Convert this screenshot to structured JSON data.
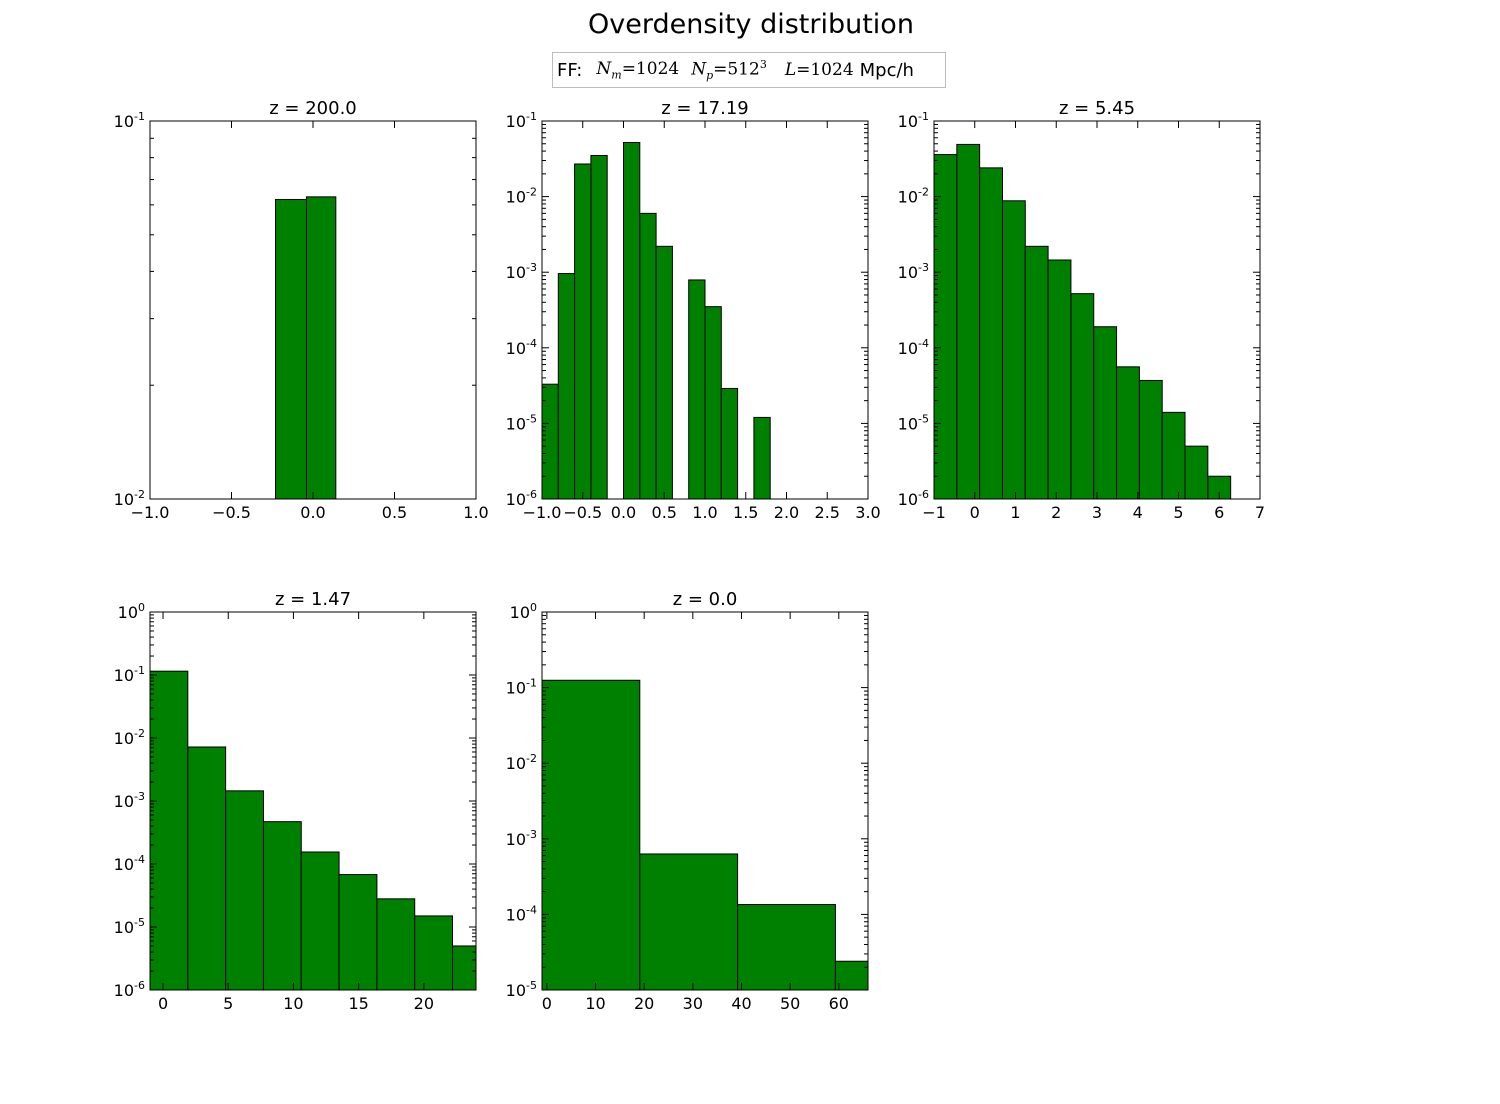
{
  "figure": {
    "title": "Overdensity distribution",
    "legend": {
      "prefix": "FF:",
      "nm_label": "N",
      "nm_sub": "m",
      "nm_value": "=1024",
      "np_label": "N",
      "np_sub": "p",
      "np_value": "=512",
      "np_sup": "3",
      "l_label": "L",
      "l_value": "=1024",
      "l_unit": "Mpc/h"
    },
    "bar_color": "#008000"
  },
  "chart_data": [
    {
      "type": "bar",
      "title": "z = 200.0",
      "yscale": "log",
      "xlim": [
        -1.0,
        1.0
      ],
      "ylim": [
        0.01,
        0.1
      ],
      "xticks": [
        -1.0,
        -0.5,
        0.0,
        0.5,
        1.0
      ],
      "xtick_labels": [
        "−1.0",
        "−0.5",
        "0.0",
        "0.5",
        "1.0"
      ],
      "ytick_exps": [
        -2,
        -1
      ],
      "bin_edges": [
        -0.23,
        -0.04,
        0.14
      ],
      "values": [
        0.062,
        0.063
      ]
    },
    {
      "type": "bar",
      "title": "z = 17.19",
      "yscale": "log",
      "xlim": [
        -1.0,
        3.0
      ],
      "ylim": [
        1e-06,
        0.1
      ],
      "xticks": [
        -1.0,
        -0.5,
        0.0,
        0.5,
        1.0,
        1.5,
        2.0,
        2.5,
        3.0
      ],
      "xtick_labels": [
        "−1.0",
        "−0.5",
        "0.0",
        "0.5",
        "1.0",
        "1.5",
        "2.0",
        "2.5",
        "3.0"
      ],
      "ytick_exps": [
        -6,
        -5,
        -4,
        -3,
        -2,
        -1
      ],
      "bin_edges": [
        -1.0,
        -0.8,
        -0.6,
        -0.4,
        -0.2,
        0.0,
        0.2,
        0.4,
        0.6,
        0.8,
        1.0,
        1.2,
        1.4,
        1.6,
        1.8
      ],
      "values": [
        3.3e-05,
        0.00096,
        0.027,
        0.035,
        0.0,
        0.052,
        0.006,
        0.0022,
        0.0,
        0.00079,
        0.00035,
        2.9e-05,
        0.0,
        1.2e-05
      ]
    },
    {
      "type": "bar",
      "title": "z = 5.45",
      "yscale": "log",
      "xlim": [
        -1,
        7
      ],
      "ylim": [
        1e-06,
        0.1
      ],
      "xticks": [
        -1,
        0,
        1,
        2,
        3,
        4,
        5,
        6,
        7
      ],
      "xtick_labels": [
        "−1",
        "0",
        "1",
        "2",
        "3",
        "4",
        "5",
        "6",
        "7"
      ],
      "ytick_exps": [
        -6,
        -5,
        -4,
        -3,
        -2,
        -1
      ],
      "bin_edges": [
        -1.0,
        -0.44,
        0.12,
        0.68,
        1.24,
        1.8,
        2.36,
        2.92,
        3.48,
        4.04,
        4.6,
        5.16,
        5.72,
        6.28
      ],
      "values": [
        0.036,
        0.049,
        0.024,
        0.0088,
        0.0022,
        0.00145,
        0.00052,
        0.00019,
        5.6e-05,
        3.7e-05,
        1.4e-05,
        5e-06,
        2e-06
      ]
    },
    {
      "type": "bar",
      "title": "z = 1.47",
      "yscale": "log",
      "xlim": [
        -1,
        24
      ],
      "ylim": [
        1e-06,
        1
      ],
      "xticks": [
        0,
        5,
        10,
        15,
        20
      ],
      "xtick_labels": [
        "0",
        "5",
        "10",
        "15",
        "20"
      ],
      "ytick_exps": [
        -6,
        -5,
        -4,
        -3,
        -2,
        -1,
        0
      ],
      "bin_edges": [
        -1.0,
        1.9,
        4.8,
        7.7,
        10.6,
        13.5,
        16.4,
        19.3,
        22.2,
        25.1
      ],
      "values": [
        0.115,
        0.0072,
        0.00145,
        0.00047,
        0.000155,
        6.8e-05,
        2.8e-05,
        1.5e-05,
        5e-06
      ]
    },
    {
      "type": "bar",
      "title": "z = 0.0",
      "yscale": "log",
      "xlim": [
        -1,
        66
      ],
      "ylim": [
        1e-05,
        1
      ],
      "xticks": [
        0,
        10,
        20,
        30,
        40,
        50,
        60
      ],
      "xtick_labels": [
        "0",
        "10",
        "20",
        "30",
        "40",
        "50",
        "60"
      ],
      "ytick_exps": [
        -5,
        -4,
        -3,
        -2,
        -1,
        0
      ],
      "bin_edges": [
        -1.0,
        19.1,
        39.2,
        59.3,
        79.4
      ],
      "values": [
        0.125,
        0.00063,
        0.000135,
        2.4e-05
      ]
    }
  ]
}
